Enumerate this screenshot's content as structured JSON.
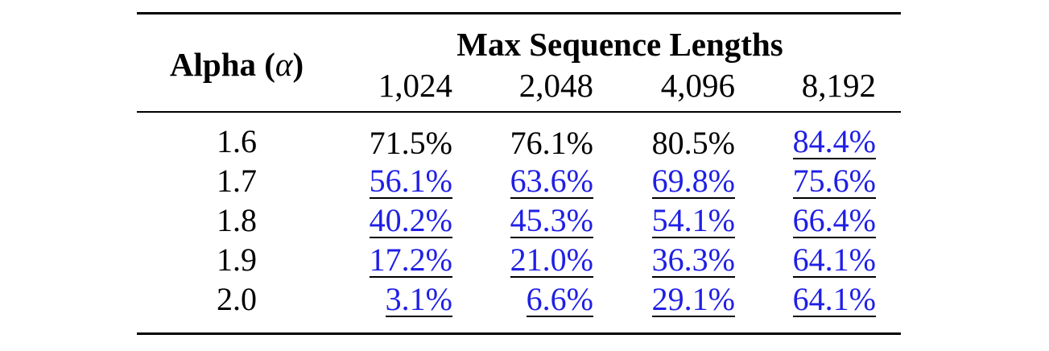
{
  "table": {
    "row_header": "Alpha (",
    "row_header_symbol": "α",
    "row_header_close": ")",
    "group_header": "Max Sequence Lengths",
    "columns": [
      "1,024",
      "2,048",
      "4,096",
      "8,192"
    ],
    "rows": [
      {
        "alpha": "1.6",
        "values": [
          "71.5%",
          "76.1%",
          "80.5%",
          "84.4%"
        ],
        "linked": [
          false,
          false,
          false,
          true
        ]
      },
      {
        "alpha": "1.7",
        "values": [
          "56.1%",
          "63.6%",
          "69.8%",
          "75.6%"
        ],
        "linked": [
          true,
          true,
          true,
          true
        ]
      },
      {
        "alpha": "1.8",
        "values": [
          "40.2%",
          "45.3%",
          "54.1%",
          "66.4%"
        ],
        "linked": [
          true,
          true,
          true,
          true
        ]
      },
      {
        "alpha": "1.9",
        "values": [
          "17.2%",
          "21.0%",
          "36.3%",
          "64.1%"
        ],
        "linked": [
          true,
          true,
          true,
          true
        ]
      },
      {
        "alpha": "2.0",
        "values": [
          "3.1%",
          "6.6%",
          "29.1%",
          "64.1%"
        ],
        "linked": [
          true,
          true,
          true,
          true
        ]
      }
    ]
  },
  "colors": {
    "text": "#000000",
    "link": "#1f1fe6",
    "rule": "#000000"
  }
}
